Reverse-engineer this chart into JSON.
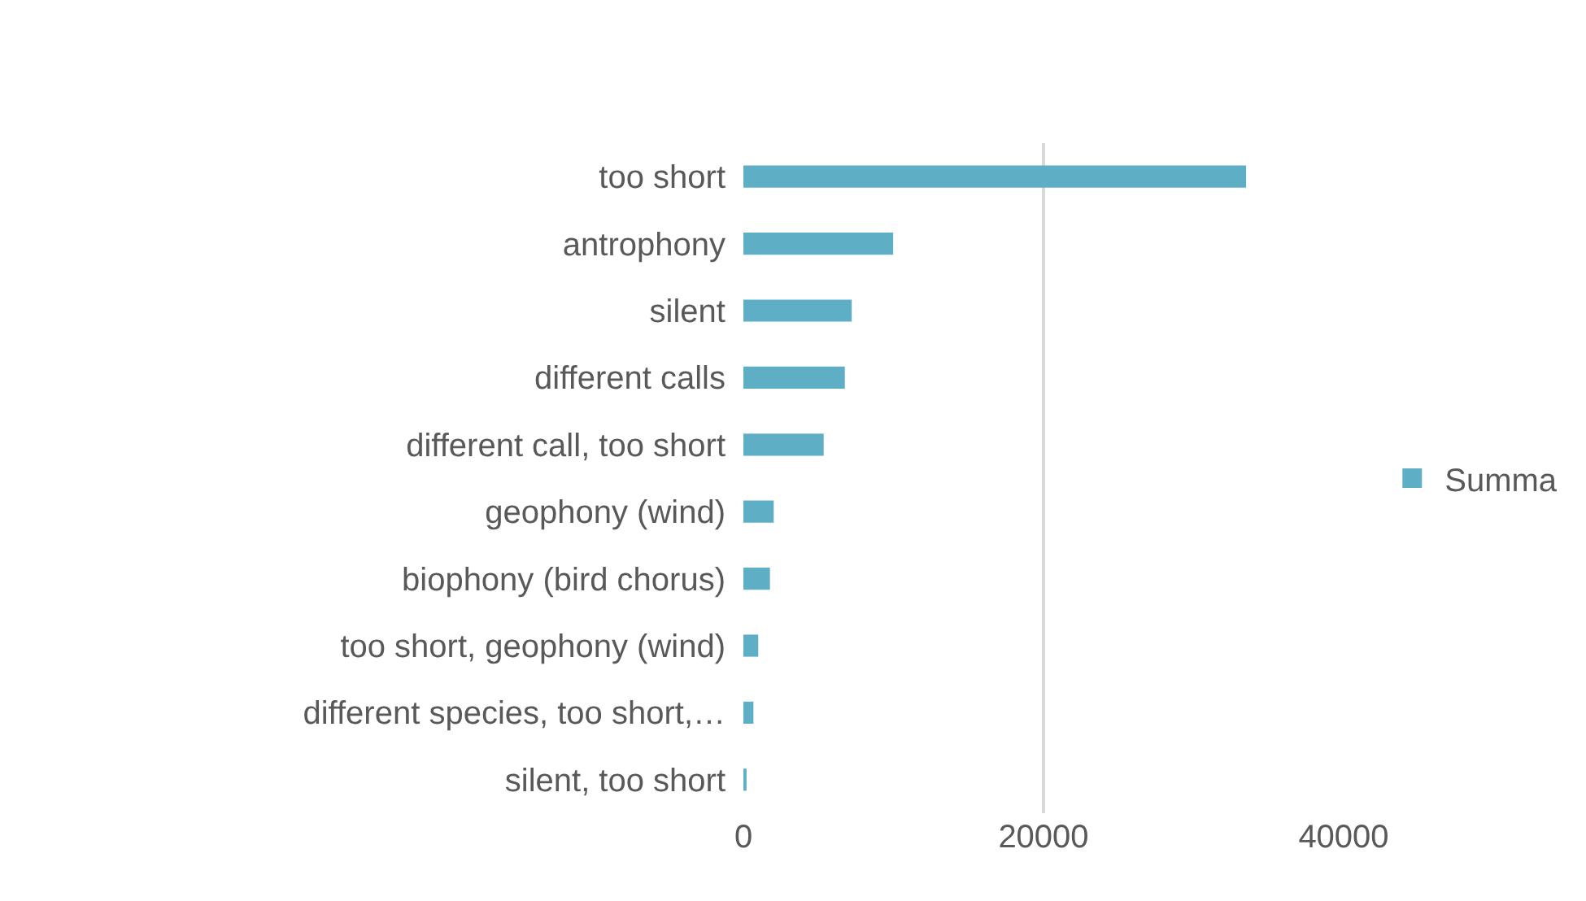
{
  "chart_data": {
    "type": "bar",
    "orientation": "horizontal",
    "categories": [
      "too short",
      "antrophony",
      "silent",
      "different calls",
      "different call, too short",
      "geophony (wind)",
      "biophony (bird chorus)",
      "too short, geophony (wind)",
      "different species, too short,…",
      "silent, too short"
    ],
    "series": [
      {
        "name": "Summa",
        "color": "#5eafc6",
        "values": [
          33500,
          9980,
          7220,
          6760,
          5350,
          2020,
          1770,
          990,
          670,
          210
        ]
      }
    ],
    "xlim": [
      0,
      40000
    ],
    "xticks": [
      0,
      20000,
      40000
    ],
    "grid": "x",
    "legend": "right"
  }
}
